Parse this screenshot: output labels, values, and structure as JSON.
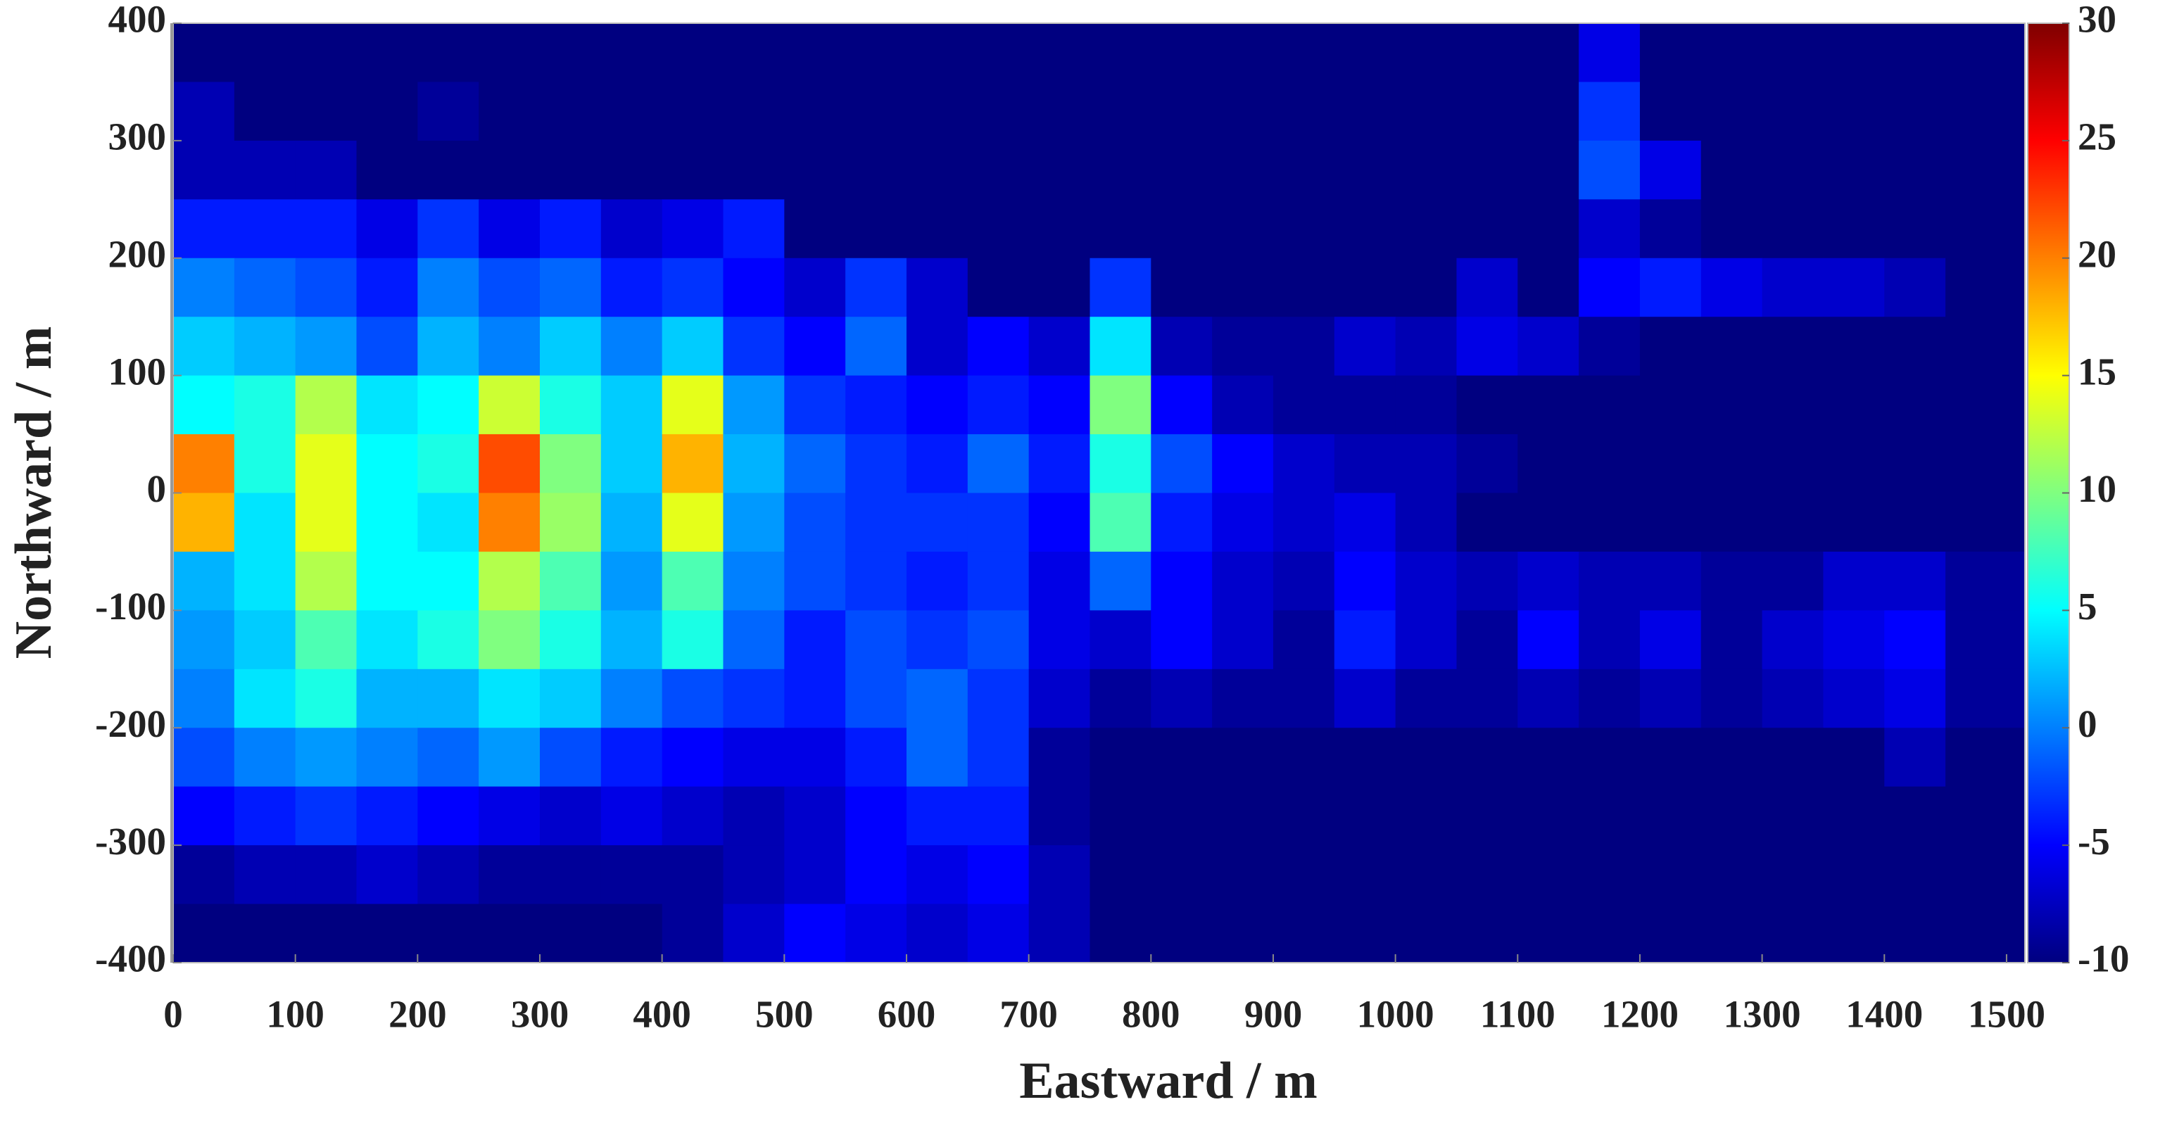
{
  "chart_data": {
    "type": "heatmap",
    "x_label": "Eastward / m",
    "y_label": "Northward / m",
    "colormap": "jet",
    "xbins": [
      0,
      50,
      100,
      150,
      200,
      250,
      300,
      350,
      400,
      450,
      500,
      550,
      600,
      650,
      700,
      750,
      800,
      850,
      900,
      950,
      1000,
      1050,
      1100,
      1150,
      1200,
      1250,
      1300,
      1350,
      1400,
      1450,
      1515
    ],
    "ybins": [
      400,
      350,
      300,
      250,
      200,
      150,
      100,
      50,
      0,
      -50,
      -100,
      -150,
      -200,
      -250,
      -300,
      -350,
      -400
    ],
    "values": [
      [
        -10,
        -10,
        -10,
        -10,
        -10,
        -10,
        -10,
        -10,
        -10,
        -10,
        -10,
        -10,
        -10,
        -10,
        -10,
        -10,
        -10,
        -10,
        -10,
        -10,
        -10,
        -10,
        -10,
        -6,
        -10,
        -10,
        -10,
        -10,
        -10,
        -10
      ],
      [
        -8,
        -10,
        -10,
        -10,
        -9,
        -10,
        -10,
        -10,
        -10,
        -10,
        -10,
        -10,
        -10,
        -10,
        -10,
        -10,
        -10,
        -10,
        -10,
        -10,
        -10,
        -10,
        -10,
        -3,
        -10,
        -10,
        -10,
        -10,
        -10,
        -10
      ],
      [
        -8,
        -8,
        -8,
        -10,
        -10,
        -10,
        -10,
        -10,
        -10,
        -10,
        -10,
        -10,
        -10,
        -10,
        -10,
        -10,
        -10,
        -10,
        -10,
        -10,
        -10,
        -10,
        -10,
        -2,
        -6,
        -10,
        -10,
        -10,
        -10,
        -10
      ],
      [
        -4,
        -4,
        -4,
        -6,
        -3,
        -6,
        -4,
        -7,
        -6,
        -4,
        -10,
        -10,
        -10,
        -10,
        -10,
        -10,
        -10,
        -10,
        -10,
        -10,
        -10,
        -10,
        -10,
        -7,
        -9,
        -10,
        -10,
        -10,
        -10,
        -10
      ],
      [
        0,
        -1,
        -2,
        -4,
        0,
        -2,
        -1,
        -4,
        -3,
        -5,
        -7,
        -3,
        -7,
        -10,
        -10,
        -3,
        -10,
        -10,
        -10,
        -10,
        -10,
        -7,
        -10,
        -5,
        -4,
        -6,
        -7,
        -7,
        -8,
        -10
      ],
      [
        3,
        2,
        1,
        -2,
        2,
        0,
        3,
        0,
        3,
        -3,
        -5,
        -1,
        -7,
        -5,
        -7,
        4,
        -8,
        -9,
        -9,
        -7,
        -8,
        -6,
        -7,
        -9,
        -10,
        -10,
        -10,
        -10,
        -10,
        -10
      ],
      [
        5,
        6,
        12,
        4,
        5,
        13,
        6,
        3,
        14,
        1,
        -3,
        -4,
        -5,
        -4,
        -5,
        10,
        -5,
        -8,
        -9,
        -9,
        -9,
        -10,
        -10,
        -10,
        -10,
        -10,
        -10,
        -10,
        -10,
        -10
      ],
      [
        20,
        6,
        14,
        5,
        6,
        22,
        10,
        3,
        18,
        2,
        -1,
        -3,
        -4,
        -1,
        -4,
        6,
        -2,
        -5,
        -7,
        -8,
        -8,
        -9,
        -10,
        -10,
        -10,
        -10,
        -10,
        -10,
        -10,
        -10
      ],
      [
        18,
        4,
        14,
        5,
        4,
        20,
        11,
        2,
        14,
        1,
        -2,
        -3,
        -3,
        -3,
        -5,
        8,
        -4,
        -6,
        -7,
        -6,
        -8,
        -10,
        -10,
        -10,
        -10,
        -10,
        -10,
        -10,
        -10,
        -10
      ],
      [
        2,
        4,
        12,
        5,
        5,
        12,
        8,
        1,
        8,
        0,
        -2,
        -3,
        -4,
        -3,
        -6,
        -1,
        -5,
        -7,
        -8,
        -5,
        -7,
        -8,
        -7,
        -8,
        -8,
        -9,
        -9,
        -7,
        -7,
        -9
      ],
      [
        1,
        3,
        8,
        4,
        6,
        10,
        6,
        2,
        6,
        -1,
        -4,
        -2,
        -3,
        -2,
        -6,
        -7,
        -5,
        -7,
        -9,
        -4,
        -7,
        -9,
        -5,
        -8,
        -6,
        -9,
        -7,
        -6,
        -5,
        -9
      ],
      [
        0,
        4,
        6,
        2,
        2,
        4,
        3,
        0,
        -2,
        -3,
        -4,
        -2,
        -1,
        -3,
        -7,
        -9,
        -8,
        -9,
        -9,
        -7,
        -9,
        -9,
        -8,
        -9,
        -8,
        -9,
        -8,
        -7,
        -6,
        -9
      ],
      [
        -2,
        0,
        1,
        0,
        -1,
        1,
        -2,
        -4,
        -5,
        -6,
        -6,
        -4,
        -1,
        -3,
        -9,
        -10,
        -10,
        -10,
        -10,
        -10,
        -10,
        -10,
        -10,
        -10,
        -10,
        -10,
        -10,
        -10,
        -8,
        -10
      ],
      [
        -5,
        -4,
        -3,
        -4,
        -5,
        -6,
        -7,
        -6,
        -7,
        -8,
        -7,
        -5,
        -4,
        -4,
        -9,
        -10,
        -10,
        -10,
        -10,
        -10,
        -10,
        -10,
        -10,
        -10,
        -10,
        -10,
        -10,
        -10,
        -10,
        -10
      ],
      [
        -9,
        -8,
        -8,
        -7,
        -8,
        -9,
        -9,
        -9,
        -9,
        -8,
        -7,
        -5,
        -6,
        -5,
        -8,
        -10,
        -10,
        -10,
        -10,
        -10,
        -10,
        -10,
        -10,
        -10,
        -10,
        -10,
        -10,
        -10,
        -10,
        -10
      ],
      [
        -10,
        -10,
        -10,
        -10,
        -10,
        -10,
        -10,
        -10,
        -9,
        -7,
        -5,
        -6,
        -7,
        -6,
        -8,
        -10,
        -10,
        -10,
        -10,
        -10,
        -10,
        -10,
        -10,
        -10,
        -10,
        -10,
        -10,
        -10,
        -10,
        -10
      ]
    ],
    "xlim": [
      0,
      1515
    ],
    "ylim": [
      -400,
      400
    ],
    "xticks": [
      0,
      100,
      200,
      300,
      400,
      500,
      600,
      700,
      800,
      900,
      1000,
      1100,
      1200,
      1300,
      1400,
      1500
    ],
    "yticks": [
      -400,
      -300,
      -200,
      -100,
      0,
      100,
      200,
      300,
      400
    ],
    "clim": [
      -10,
      30
    ],
    "cticks": [
      -10,
      -5,
      0,
      5,
      10,
      15,
      20,
      25,
      30
    ]
  }
}
